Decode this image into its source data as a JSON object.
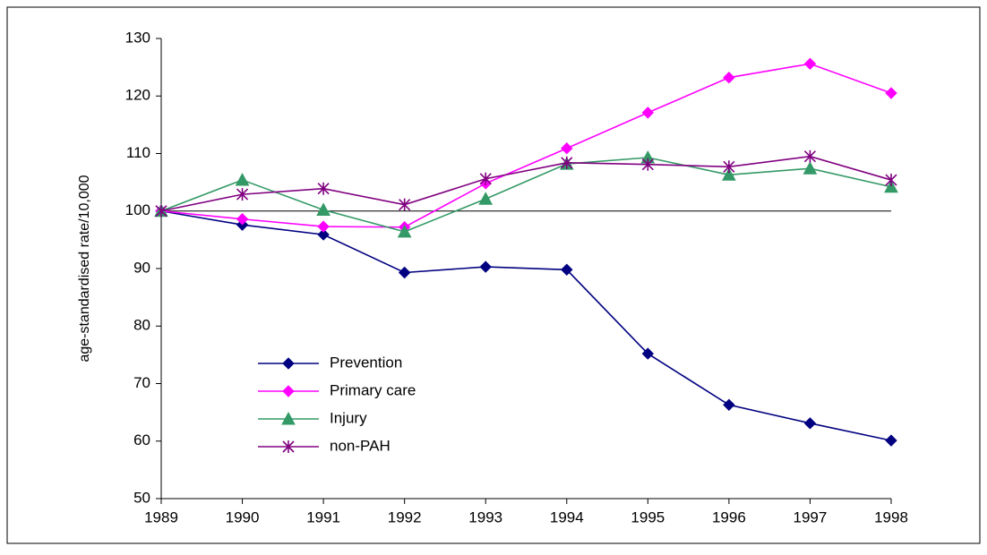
{
  "chart_data": {
    "type": "line",
    "y_label": "age-standardised rate/10,000",
    "x": [
      1989,
      1990,
      1991,
      1992,
      1993,
      1994,
      1995,
      1996,
      1997,
      1998
    ],
    "xlim": [
      1989,
      1998
    ],
    "xticks": [
      1989,
      1990,
      1991,
      1992,
      1993,
      1994,
      1995,
      1996,
      1997,
      1998
    ],
    "ylim": [
      50,
      130
    ],
    "yticks": [
      50,
      60,
      70,
      80,
      90,
      100,
      110,
      120,
      130
    ],
    "reference_line": 100,
    "grid": false,
    "legend": "lower-left",
    "series": [
      {
        "name": "Prevention",
        "color": "#000080",
        "marker": "diamond",
        "values": [
          100,
          97.6,
          95.9,
          89.3,
          90.3,
          89.8,
          75.2,
          66.3,
          63.1,
          60.1
        ]
      },
      {
        "name": "Primary care",
        "color": "#ff00ff",
        "marker": "diamond",
        "values": [
          100,
          98.6,
          97.3,
          97.2,
          104.8,
          110.9,
          117.1,
          123.2,
          125.6,
          120.5
        ]
      },
      {
        "name": "Injury",
        "color": "#339966",
        "marker": "triangle",
        "values": [
          100,
          105.4,
          100.2,
          96.4,
          102.1,
          108.2,
          109.3,
          106.3,
          107.4,
          104.2
        ]
      },
      {
        "name": "non-PAH",
        "color": "#800080",
        "marker": "asterisk",
        "values": [
          100,
          102.9,
          103.9,
          101.1,
          105.6,
          108.4,
          108.1,
          107.7,
          109.5,
          105.4
        ]
      }
    ]
  }
}
